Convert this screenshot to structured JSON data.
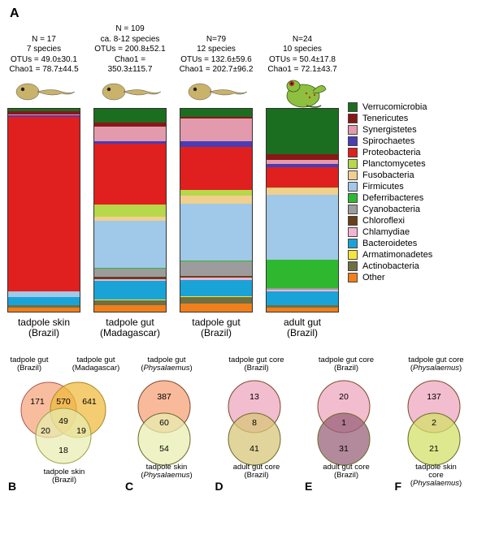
{
  "panelA_letter": "A",
  "colors": {
    "Verrucomicrobia": "#1b6e20",
    "Tenericutes": "#8a1717",
    "Synergistetes": "#e39aad",
    "Spirochaetes": "#4a3db5",
    "Proteobacteria": "#e01f1f",
    "Planctomycetes": "#b6d84a",
    "Fusobacteria": "#f0cf8f",
    "Firmicutes": "#a0c8e8",
    "Deferribacteres": "#2fb82f",
    "Cyanobacteria": "#9c9c9c",
    "Chloroflexi": "#6b3f1a",
    "Chlamydiae": "#f3b4d3",
    "Bacteroidetes": "#1aa3d6",
    "Armatimonadetes": "#f5e63a",
    "Actinobacteria": "#6f6f44",
    "Other": "#f07f1c"
  },
  "legend_order": [
    "Verrucomicrobia",
    "Tenericutes",
    "Synergistetes",
    "Spirochaetes",
    "Proteobacteria",
    "Planctomycetes",
    "Fusobacteria",
    "Firmicutes",
    "Deferribacteres",
    "Cyanobacteria",
    "Chloroflexi",
    "Chlamydiae",
    "Bacteroidetes",
    "Armatimonadetes",
    "Actinobacteria",
    "Other"
  ],
  "bars": [
    {
      "caption_l1": "tadpole skin",
      "caption_l2": "(Brazil)",
      "header_lines": [
        "N = 17",
        "7 species",
        "OTUs = 49.0±30.1",
        "Chao1 = 78.7±44.5"
      ],
      "silhouette": "tadpole",
      "segments": [
        {
          "taxon": "Other",
          "pct": 2.0
        },
        {
          "taxon": "Actinobacteria",
          "pct": 1.0
        },
        {
          "taxon": "Bacteroidetes",
          "pct": 4.0
        },
        {
          "taxon": "Firmicutes",
          "pct": 3.0
        },
        {
          "taxon": "Proteobacteria",
          "pct": 86.0
        },
        {
          "taxon": "Spirochaetes",
          "pct": 0.5
        },
        {
          "taxon": "Synergistetes",
          "pct": 0.5
        },
        {
          "taxon": "Tenericutes",
          "pct": 1.5
        },
        {
          "taxon": "Verrucomicrobia",
          "pct": 1.5
        }
      ]
    },
    {
      "caption_l1": "tadpole gut",
      "caption_l2": "(Madagascar)",
      "header_lines": [
        "N = 109",
        "ca. 8-12 species",
        "OTUs = 200.8±52.1",
        "Chao1 = 350.3±115.7"
      ],
      "silhouette": "tadpole",
      "segments": [
        {
          "taxon": "Other",
          "pct": 3.0
        },
        {
          "taxon": "Actinobacteria",
          "pct": 2.5
        },
        {
          "taxon": "Armatimonadetes",
          "pct": 0.5
        },
        {
          "taxon": "Bacteroidetes",
          "pct": 9.0
        },
        {
          "taxon": "Chlamydiae",
          "pct": 1.0
        },
        {
          "taxon": "Chloroflexi",
          "pct": 1.0
        },
        {
          "taxon": "Cyanobacteria",
          "pct": 4.0
        },
        {
          "taxon": "Deferribacteres",
          "pct": 0.5
        },
        {
          "taxon": "Firmicutes",
          "pct": 23.0
        },
        {
          "taxon": "Fusobacteria",
          "pct": 2.0
        },
        {
          "taxon": "Planctomycetes",
          "pct": 6.0
        },
        {
          "taxon": "Proteobacteria",
          "pct": 30.0
        },
        {
          "taxon": "Spirochaetes",
          "pct": 1.5
        },
        {
          "taxon": "Synergistetes",
          "pct": 7.0
        },
        {
          "taxon": "Tenericutes",
          "pct": 2.0
        },
        {
          "taxon": "Verrucomicrobia",
          "pct": 7.0
        }
      ]
    },
    {
      "caption_l1": "tadpole gut",
      "caption_l2": "(Brazil)",
      "header_lines": [
        "N=79",
        "12 species",
        "OTUs = 132.6±59.6",
        "Chao1 = 202.7±96.2"
      ],
      "silhouette": "tadpole",
      "segments": [
        {
          "taxon": "Other",
          "pct": 4.0
        },
        {
          "taxon": "Actinobacteria",
          "pct": 3.0
        },
        {
          "taxon": "Armatimonadetes",
          "pct": 0.5
        },
        {
          "taxon": "Bacteroidetes",
          "pct": 8.0
        },
        {
          "taxon": "Chlamydiae",
          "pct": 1.0
        },
        {
          "taxon": "Chloroflexi",
          "pct": 1.0
        },
        {
          "taxon": "Cyanobacteria",
          "pct": 7.0
        },
        {
          "taxon": "Deferribacteres",
          "pct": 0.5
        },
        {
          "taxon": "Firmicutes",
          "pct": 28.0
        },
        {
          "taxon": "Fusobacteria",
          "pct": 4.0
        },
        {
          "taxon": "Planctomycetes",
          "pct": 3.0
        },
        {
          "taxon": "Proteobacteria",
          "pct": 21.0
        },
        {
          "taxon": "Spirochaetes",
          "pct": 3.0
        },
        {
          "taxon": "Synergistetes",
          "pct": 11.0
        },
        {
          "taxon": "Tenericutes",
          "pct": 1.0
        },
        {
          "taxon": "Verrucomicrobia",
          "pct": 4.0
        }
      ]
    },
    {
      "caption_l1": "adult gut",
      "caption_l2": "(Brazil)",
      "header_lines": [
        "N=24",
        "10 species",
        "OTUs = 50.4±17.8",
        "Chao1 = 72.1±43.7"
      ],
      "silhouette": "frog",
      "segments": [
        {
          "taxon": "Other",
          "pct": 2.0
        },
        {
          "taxon": "Actinobacteria",
          "pct": 1.0
        },
        {
          "taxon": "Bacteroidetes",
          "pct": 7.0
        },
        {
          "taxon": "Chlamydiae",
          "pct": 0.5
        },
        {
          "taxon": "Cyanobacteria",
          "pct": 1.0
        },
        {
          "taxon": "Deferribacteres",
          "pct": 14.0
        },
        {
          "taxon": "Firmicutes",
          "pct": 32.0
        },
        {
          "taxon": "Fusobacteria",
          "pct": 3.0
        },
        {
          "taxon": "Planctomycetes",
          "pct": 0.5
        },
        {
          "taxon": "Proteobacteria",
          "pct": 10.0
        },
        {
          "taxon": "Spirochaetes",
          "pct": 1.5
        },
        {
          "taxon": "Synergistetes",
          "pct": 2.0
        },
        {
          "taxon": "Tenericutes",
          "pct": 3.0
        },
        {
          "taxon": "Verrucomicrobia",
          "pct": 22.5
        }
      ]
    }
  ],
  "venn": {
    "B": {
      "type": "three",
      "labels": {
        "topLeft": "tadpole gut\n(Brazil)",
        "topRight": "tadpole gut\n(Madagascar)",
        "bottom": "tadpole skin\n(Brazil)"
      },
      "colors": {
        "a": "#f5a37a",
        "b": "#f0b83a",
        "c": "#e8edb0"
      },
      "values": {
        "a": 171,
        "b": 641,
        "ab": 570,
        "c": 18,
        "ac": 20,
        "bc": 19,
        "abc": 49
      }
    },
    "C": {
      "type": "two",
      "labels": {
        "top": "tadpole gut\n(Physalaemus)",
        "bottom": "tadpole skin\n(Physalaemus)"
      },
      "colors": {
        "a": "#f5a37a",
        "b": "#e8edb0"
      },
      "values": {
        "a": 387,
        "b": 54,
        "ab": 60
      }
    },
    "D": {
      "type": "two",
      "labels": {
        "top": "tadpole gut core\n(Brazil)",
        "bottom": "adult gut core\n(Brazil)"
      },
      "colors": {
        "a": "#eda7bd",
        "b": "#d8c77a"
      },
      "values": {
        "a": 13,
        "b": 41,
        "ab": 8
      }
    },
    "E": {
      "type": "two",
      "labels": {
        "top": "tadpole gut core\n(Brazil)",
        "bottom": "adult gut core\n(Brazil)"
      },
      "colors": {
        "a": "#eda7bd",
        "b": "#9a637a"
      },
      "values": {
        "a": 20,
        "b": 31,
        "ab": 1
      }
    },
    "F": {
      "type": "two",
      "labels": {
        "top": "tadpole gut core\n(Physalaemus)",
        "bottom": "tadpole skin core\n(Physalaemus)"
      },
      "colors": {
        "a": "#eda7bd",
        "b": "#d3e06a"
      },
      "values": {
        "a": 137,
        "b": 21,
        "ab": 2
      }
    }
  }
}
